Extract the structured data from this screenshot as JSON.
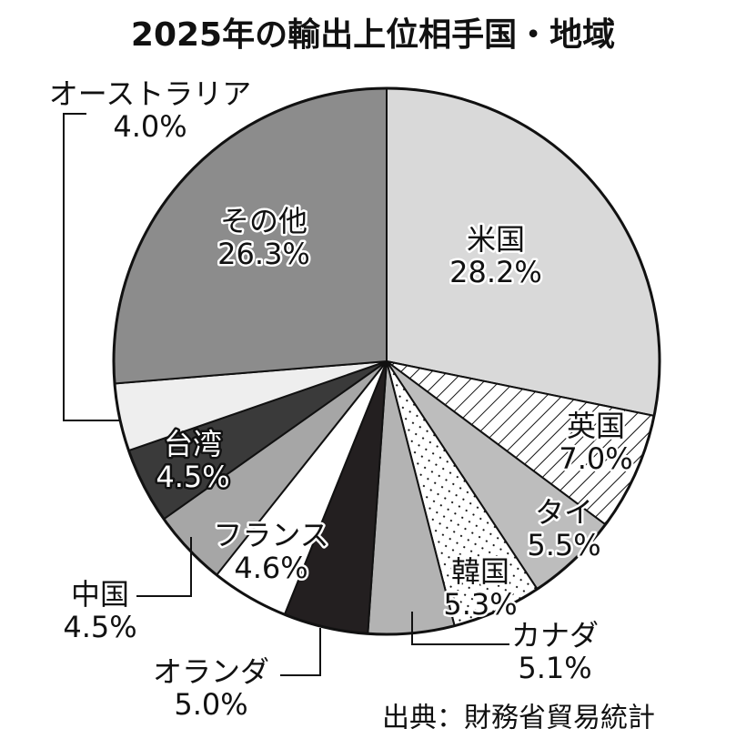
{
  "chart_data": {
    "type": "pie",
    "title": "2025年の輸出上位相手国・地域",
    "categories": [
      "米国",
      "英国",
      "タイ",
      "韓国",
      "カナダ",
      "オランダ",
      "フランス",
      "中国",
      "台湾",
      "オーストラリア",
      "その他"
    ],
    "values": [
      28.2,
      7.0,
      5.5,
      5.3,
      5.1,
      5.0,
      4.6,
      4.5,
      4.5,
      4.0,
      26.3
    ],
    "value_labels": [
      "28.2%",
      "7.0%",
      "5.5%",
      "5.3%",
      "5.1%",
      "5.0%",
      "4.6%",
      "4.5%",
      "4.5%",
      "4.0%",
      "26.3%"
    ],
    "colors": [
      "#d9d9d9",
      "hatch",
      "#bdbdbd",
      "dots",
      "#b3b3b3",
      "#231f20",
      "#ffffff",
      "#a6a6a6",
      "#3a3a3a",
      "#eeeeee",
      "#8c8c8c"
    ],
    "source": "出典：財務省貿易統計"
  }
}
